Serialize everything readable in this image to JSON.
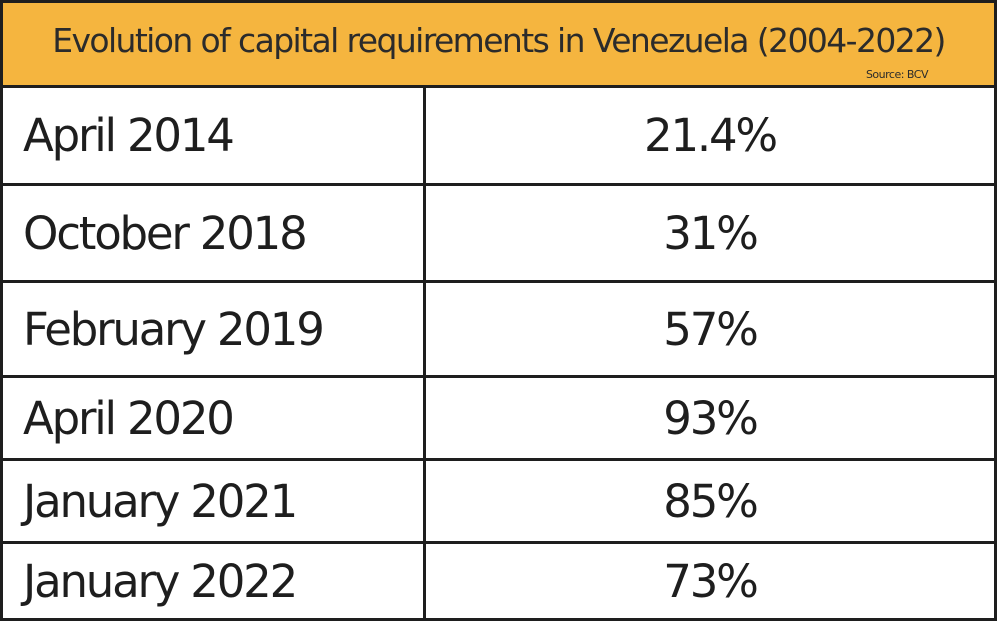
{
  "chart_data": {
    "type": "table",
    "title": "Evolution of capital requirements in Venezuela (2004-2022)",
    "source": "Source: BCV",
    "rows": [
      {
        "date": "April 2014",
        "value": "21.4%"
      },
      {
        "date": "October 2018",
        "value": "31%"
      },
      {
        "date": "February 2019",
        "value": "57%"
      },
      {
        "date": "April 2020",
        "value": "93%"
      },
      {
        "date": "January 2021",
        "value": "85%"
      },
      {
        "date": "January 2022",
        "value": "73%"
      }
    ],
    "colors": {
      "header_bg": "#f5b53f",
      "border": "#1e1e1e",
      "text": "#1e1e1e"
    }
  }
}
